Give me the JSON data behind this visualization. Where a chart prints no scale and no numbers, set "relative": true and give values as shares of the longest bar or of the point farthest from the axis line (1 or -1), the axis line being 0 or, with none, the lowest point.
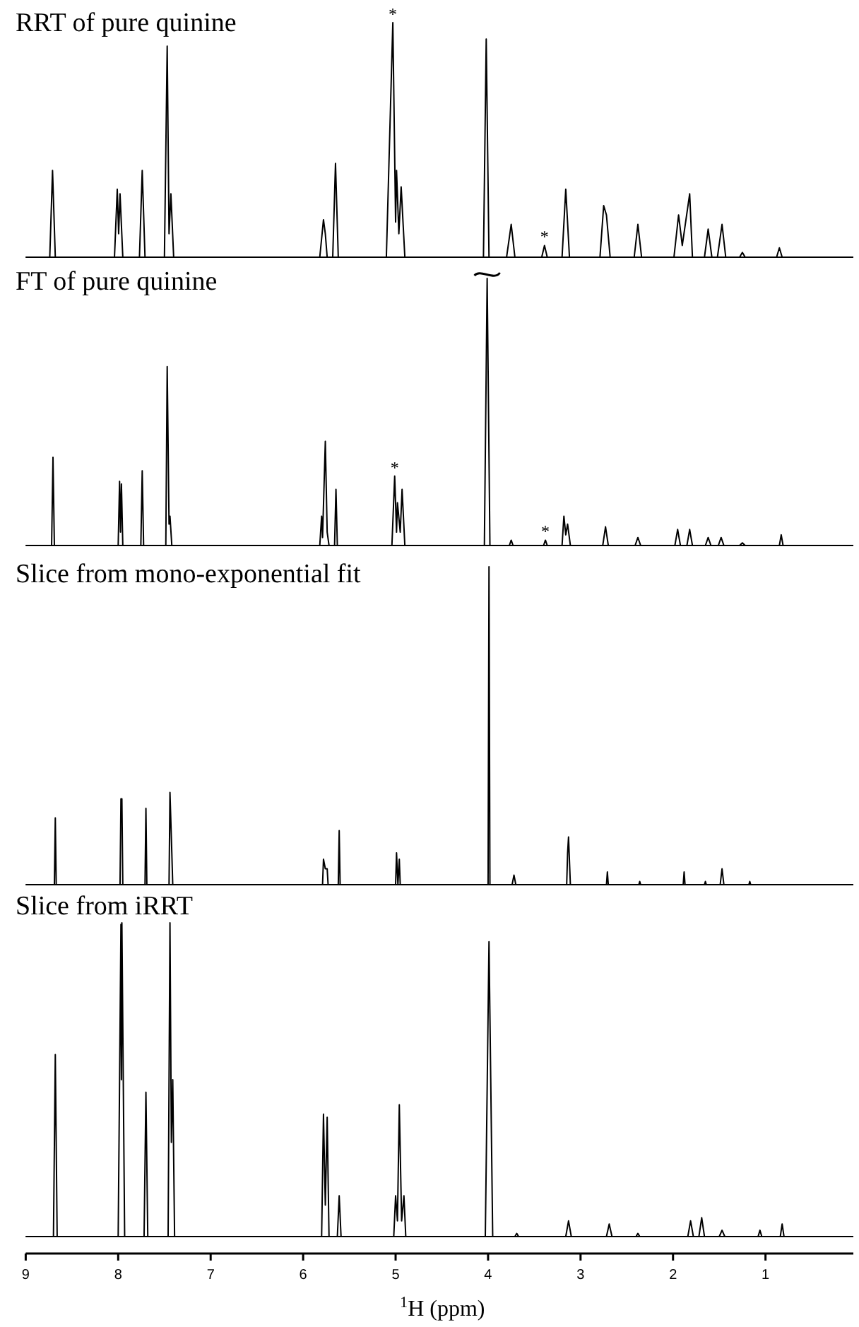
{
  "chart_data": [
    {
      "type": "line",
      "title": "RRT of pure quinine",
      "relative": true,
      "xlim": [
        9,
        0.05
      ],
      "tick_labels": false,
      "annotations": [
        {
          "text": "*",
          "x": 5.03,
          "y": 1.0
        },
        {
          "text": "*",
          "x": 3.39,
          "y": 0.05
        }
      ],
      "series": [
        {
          "color": "#000000",
          "x": [
            9,
            8.74,
            8.71,
            8.68,
            8.04,
            8.01,
            7.995,
            7.98,
            7.95,
            7.77,
            7.74,
            7.71,
            7.5,
            7.47,
            7.45,
            7.43,
            7.4,
            5.82,
            5.79,
            5.78,
            5.76,
            5.74,
            5.68,
            5.65,
            5.62,
            5.1,
            5.03,
            5.0,
            4.99,
            4.965,
            4.94,
            4.9,
            4.5,
            4.05,
            4.02,
            3.99,
            3.8,
            3.75,
            3.71,
            3.42,
            3.39,
            3.36,
            3.2,
            3.16,
            3.12,
            2.79,
            2.75,
            2.72,
            2.68,
            2.42,
            2.38,
            2.34,
            1.99,
            1.94,
            1.9,
            1.82,
            1.79,
            1.66,
            1.62,
            1.58,
            1.52,
            1.47,
            1.43,
            1.28,
            1.25,
            1.22,
            0.88,
            0.85,
            0.82,
            0.05
          ],
          "values": [
            0,
            0,
            0.37,
            0,
            0,
            0.29,
            0.1,
            0.27,
            0,
            0,
            0.37,
            0,
            0,
            0.9,
            0.1,
            0.27,
            0,
            0,
            0.12,
            0.16,
            0.1,
            0,
            0,
            0.4,
            0,
            0,
            1.0,
            0.15,
            0.37,
            0.1,
            0.3,
            0,
            0,
            0,
            0.93,
            0,
            0,
            0.14,
            0,
            0,
            0.05,
            0,
            0,
            0.29,
            0,
            0,
            0.22,
            0.18,
            0,
            0,
            0.14,
            0,
            0,
            0.18,
            0.05,
            0.27,
            0,
            0,
            0.12,
            0,
            0,
            0.14,
            0,
            0,
            0.02,
            0,
            0,
            0.04,
            0,
            0
          ]
        }
      ]
    },
    {
      "type": "line",
      "title": "FT of pure quinine",
      "relative": true,
      "xlim": [
        9,
        0.05
      ],
      "tick_labels": false,
      "annotations": [
        {
          "text": "*",
          "x": 5.01,
          "y": 0.26
        },
        {
          "text": "*",
          "x": 3.38,
          "y": 0.02
        }
      ],
      "series": [
        {
          "color": "#000000",
          "x": [
            9,
            8.72,
            8.705,
            8.69,
            8.0,
            7.985,
            7.975,
            7.965,
            7.95,
            7.755,
            7.74,
            7.725,
            7.485,
            7.47,
            7.45,
            7.44,
            7.42,
            5.82,
            5.8,
            5.79,
            5.76,
            5.74,
            5.72,
            5.66,
            5.645,
            5.63,
            5.04,
            5.01,
            4.99,
            4.98,
            4.95,
            4.93,
            4.9,
            4.04,
            4.01,
            3.98,
            3.77,
            3.75,
            3.73,
            3.4,
            3.38,
            3.36,
            3.2,
            3.18,
            3.16,
            3.14,
            3.11,
            2.76,
            2.73,
            2.7,
            2.41,
            2.38,
            2.35,
            1.98,
            1.95,
            1.92,
            1.85,
            1.82,
            1.79,
            1.65,
            1.62,
            1.59,
            1.51,
            1.48,
            1.45,
            1.28,
            1.25,
            1.22,
            0.85,
            0.83,
            0.81,
            0.05
          ],
          "values": [
            0,
            0,
            0.33,
            0,
            0,
            0.24,
            0.05,
            0.23,
            0,
            0,
            0.28,
            0,
            0,
            0.67,
            0.08,
            0.11,
            0,
            0,
            0.11,
            0.03,
            0.39,
            0.05,
            0,
            0,
            0.21,
            0,
            0,
            0.26,
            0.05,
            0.16,
            0.05,
            0.21,
            0,
            0,
            1.0,
            0,
            0,
            0.02,
            0,
            0,
            0.02,
            0,
            0,
            0.11,
            0.04,
            0.08,
            0,
            0,
            0.07,
            0,
            0,
            0.03,
            0,
            0,
            0.06,
            0,
            0,
            0.06,
            0,
            0,
            0.03,
            0,
            0,
            0.03,
            0,
            0,
            0.01,
            0,
            0,
            0.04,
            0,
            0
          ]
        }
      ]
    },
    {
      "type": "line",
      "title": "Slice from mono-exponential fit",
      "relative": true,
      "xlim": [
        9,
        0.05
      ],
      "tick_labels": false,
      "series": [
        {
          "color": "#000000",
          "x": [
            9,
            8.69,
            8.68,
            8.67,
            7.98,
            7.97,
            7.96,
            7.95,
            7.71,
            7.7,
            7.69,
            7.45,
            7.44,
            7.42,
            7.41,
            5.79,
            5.78,
            5.76,
            5.74,
            5.73,
            5.62,
            5.61,
            5.6,
            5.0,
            4.99,
            4.975,
            4.96,
            4.95,
            4.0,
            3.99,
            3.98,
            3.74,
            3.72,
            3.7,
            3.15,
            3.14,
            3.13,
            3.11,
            2.72,
            2.71,
            2.7,
            2.37,
            2.36,
            2.35,
            1.89,
            1.88,
            1.87,
            1.66,
            1.65,
            1.64,
            1.49,
            1.47,
            1.45,
            1.18,
            1.17,
            1.16,
            0.05
          ],
          "values": [
            0,
            0,
            0.21,
            0,
            0,
            0.27,
            0.27,
            0,
            0,
            0.24,
            0,
            0,
            0.29,
            0.1,
            0,
            0,
            0.08,
            0.05,
            0.05,
            0,
            0,
            0.17,
            0,
            0,
            0.1,
            0,
            0.08,
            0,
            0,
            1.0,
            0,
            0,
            0.03,
            0,
            0,
            0.1,
            0.15,
            0,
            0,
            0.04,
            0,
            0,
            0.01,
            0,
            0,
            0.04,
            0,
            0,
            0.01,
            0,
            0,
            0.05,
            0,
            0,
            0.01,
            0,
            0
          ]
        }
      ]
    },
    {
      "type": "line",
      "title": "Slice from iRRT",
      "xlabel": "$^{1}$H (ppm)",
      "relative": true,
      "xlim": [
        9,
        0.05
      ],
      "xticks": [
        9,
        8,
        7,
        6,
        5,
        4,
        3,
        2,
        1
      ],
      "tick_labels": "x",
      "series": [
        {
          "color": "#000000",
          "x": [
            9,
            8.7,
            8.68,
            8.66,
            8.0,
            7.97,
            7.965,
            7.96,
            7.93,
            7.72,
            7.7,
            7.68,
            7.46,
            7.44,
            7.425,
            7.41,
            7.39,
            5.8,
            5.78,
            5.76,
            5.74,
            5.72,
            5.63,
            5.61,
            5.59,
            5.02,
            5.0,
            4.98,
            4.96,
            4.935,
            4.91,
            4.89,
            4.03,
            3.99,
            3.95,
            3.71,
            3.69,
            3.67,
            3.16,
            3.13,
            3.1,
            2.72,
            2.69,
            2.66,
            2.4,
            2.38,
            2.36,
            1.84,
            1.81,
            1.78,
            1.72,
            1.69,
            1.66,
            1.5,
            1.47,
            1.44,
            1.08,
            1.06,
            1.04,
            0.84,
            0.82,
            0.8,
            0.05
          ],
          "values": [
            0,
            0,
            0.58,
            0,
            0,
            0.995,
            0.5,
            1.0,
            0,
            0,
            0.46,
            0,
            0,
            1.0,
            0.3,
            0.5,
            0,
            0,
            0.39,
            0.1,
            0.38,
            0,
            0,
            0.13,
            0,
            0,
            0.13,
            0.05,
            0.42,
            0.05,
            0.13,
            0,
            0,
            0.94,
            0,
            0,
            0.01,
            0,
            0,
            0.05,
            0,
            0,
            0.04,
            0,
            0,
            0.01,
            0,
            0,
            0.05,
            0,
            0,
            0.06,
            0,
            0,
            0.02,
            0,
            0,
            0.02,
            0,
            0,
            0.04,
            0,
            0
          ]
        }
      ]
    }
  ]
}
